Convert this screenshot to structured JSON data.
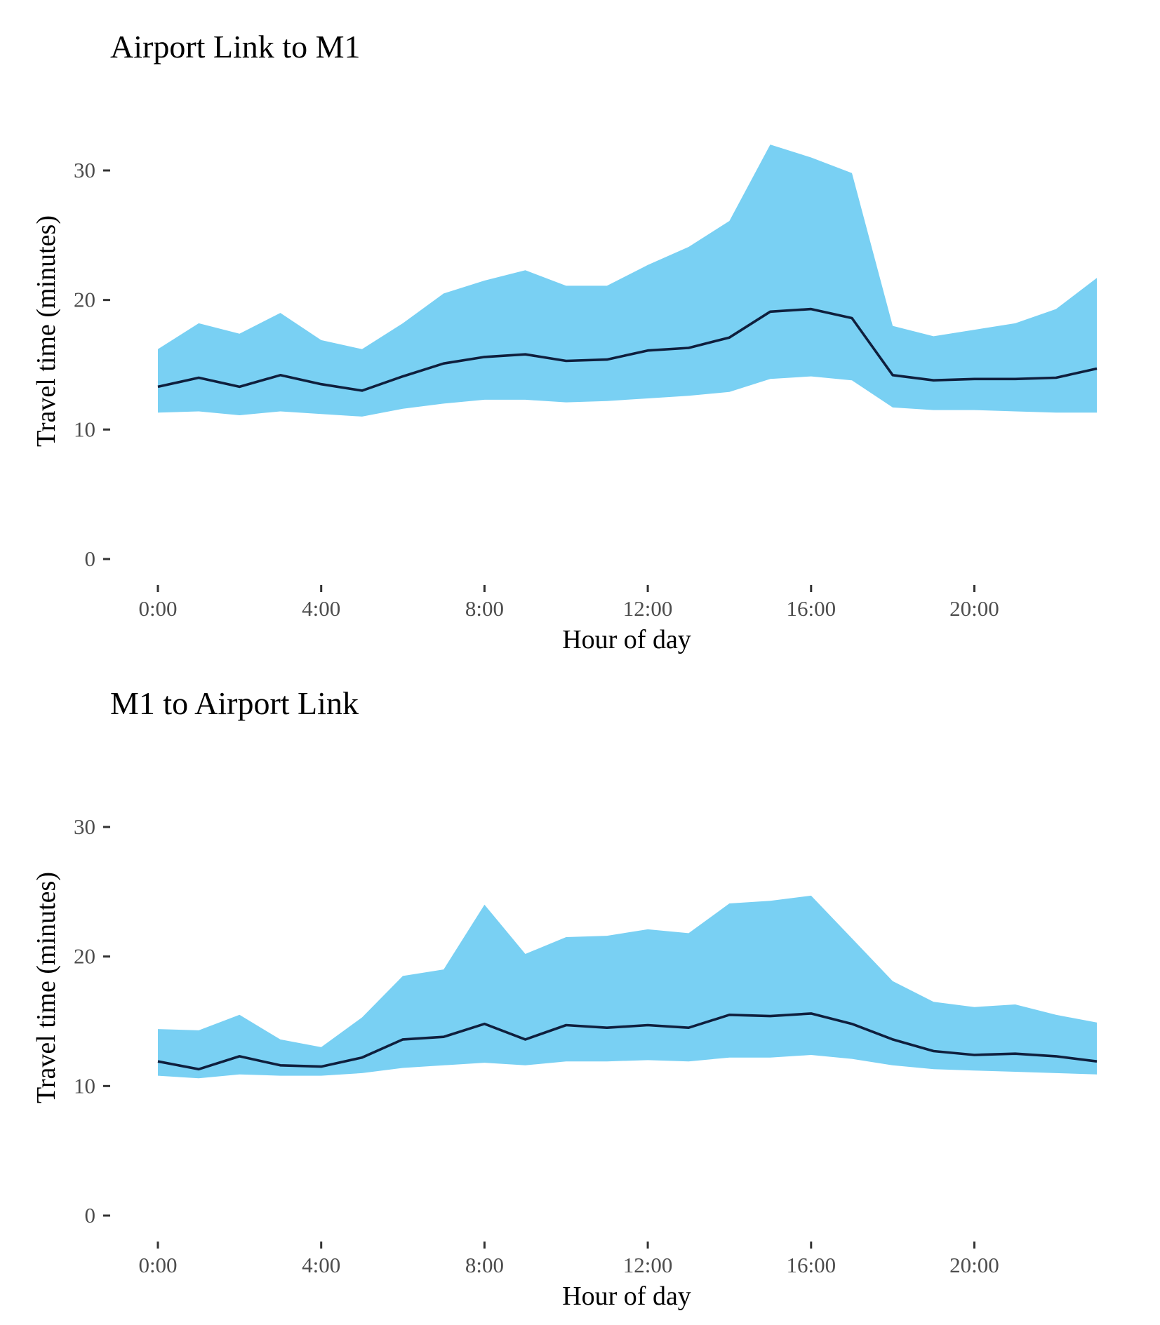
{
  "colors": {
    "band": "#79d0f3",
    "line": "#0f1f3d",
    "tick": "#333333"
  },
  "chart_data": [
    {
      "type": "area",
      "title": "Airport Link to M1",
      "xlabel": "Hour of day",
      "ylabel": "Travel time (minutes)",
      "x": [
        0,
        1,
        2,
        3,
        4,
        5,
        6,
        7,
        8,
        9,
        10,
        11,
        12,
        13,
        14,
        15,
        16,
        17,
        18,
        19,
        20,
        21,
        22,
        23
      ],
      "x_tick_values": [
        0,
        4,
        8,
        12,
        16,
        20
      ],
      "x_tick_labels": [
        "0:00",
        "4:00",
        "8:00",
        "12:00",
        "16:00",
        "20:00"
      ],
      "y_ticks": [
        0,
        10,
        20,
        30
      ],
      "xlim": [
        -0.75,
        23
      ],
      "ylim": [
        0,
        34
      ],
      "grid": false,
      "series": [
        {
          "role": "upper",
          "values": [
            16.2,
            18.2,
            17.4,
            19.0,
            16.9,
            16.2,
            18.2,
            20.5,
            21.5,
            22.3,
            21.1,
            21.1,
            22.7,
            24.1,
            26.1,
            32.0,
            31.0,
            29.8,
            18.0,
            17.2,
            17.7,
            18.2,
            19.3,
            21.7
          ]
        },
        {
          "role": "median",
          "values": [
            13.3,
            14.0,
            13.3,
            14.2,
            13.5,
            13.0,
            14.1,
            15.1,
            15.6,
            15.8,
            15.3,
            15.4,
            16.1,
            16.3,
            17.1,
            19.1,
            19.3,
            18.6,
            14.2,
            13.8,
            13.9,
            13.9,
            14.0,
            14.7
          ]
        },
        {
          "role": "lower",
          "values": [
            11.3,
            11.4,
            11.1,
            11.4,
            11.2,
            11.0,
            11.6,
            12.0,
            12.3,
            12.3,
            12.1,
            12.2,
            12.4,
            12.6,
            12.9,
            13.9,
            14.1,
            13.8,
            11.7,
            11.5,
            11.5,
            11.4,
            11.3,
            11.3
          ]
        }
      ]
    },
    {
      "type": "area",
      "title": "M1 to Airport Link",
      "xlabel": "Hour of day",
      "ylabel": "Travel time (minutes)",
      "x": [
        0,
        1,
        2,
        3,
        4,
        5,
        6,
        7,
        8,
        9,
        10,
        11,
        12,
        13,
        14,
        15,
        16,
        17,
        18,
        19,
        20,
        21,
        22,
        23
      ],
      "x_tick_values": [
        0,
        4,
        8,
        12,
        16,
        20
      ],
      "x_tick_labels": [
        "0:00",
        "4:00",
        "8:00",
        "12:00",
        "16:00",
        "20:00"
      ],
      "y_ticks": [
        0,
        10,
        20,
        30
      ],
      "xlim": [
        -0.75,
        23
      ],
      "ylim": [
        0,
        34
      ],
      "grid": false,
      "series": [
        {
          "role": "upper",
          "values": [
            14.4,
            14.3,
            15.5,
            13.6,
            13.0,
            15.3,
            18.5,
            19.0,
            24.0,
            20.2,
            21.5,
            21.6,
            22.1,
            21.8,
            24.1,
            24.3,
            24.7,
            21.4,
            18.1,
            16.5,
            16.1,
            16.3,
            15.5,
            14.9
          ]
        },
        {
          "role": "median",
          "values": [
            11.9,
            11.3,
            12.3,
            11.6,
            11.5,
            12.2,
            13.6,
            13.8,
            14.8,
            13.6,
            14.7,
            14.5,
            14.7,
            14.5,
            15.5,
            15.4,
            15.6,
            14.8,
            13.6,
            12.7,
            12.4,
            12.5,
            12.3,
            11.9
          ]
        },
        {
          "role": "lower",
          "values": [
            10.8,
            10.6,
            10.9,
            10.8,
            10.8,
            11.0,
            11.4,
            11.6,
            11.8,
            11.6,
            11.9,
            11.9,
            12.0,
            11.9,
            12.2,
            12.2,
            12.4,
            12.1,
            11.6,
            11.3,
            11.2,
            11.1,
            11.0,
            10.9
          ]
        }
      ]
    }
  ]
}
